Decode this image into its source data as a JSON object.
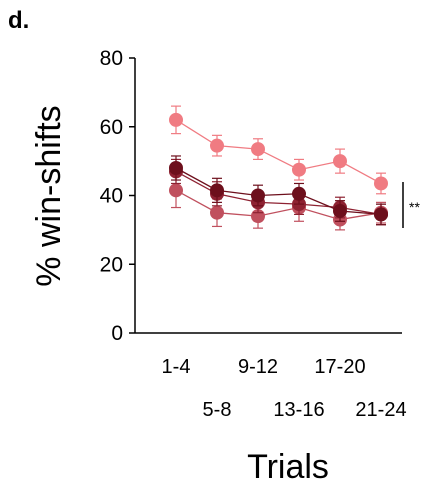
{
  "panel_label": "d.",
  "chart_data": {
    "type": "line",
    "title": "",
    "xlabel": "Trials",
    "ylabel": "% win-shifts",
    "ylim": [
      0,
      80
    ],
    "yticks": [
      0,
      20,
      40,
      60,
      80
    ],
    "categories": [
      "1-4",
      "5-8",
      "9-12",
      "13-16",
      "17-20",
      "21-24"
    ],
    "grid": false,
    "legend": "none",
    "series": [
      {
        "color": "#f07b82",
        "values": [
          62,
          54.5,
          53.5,
          47.5,
          50,
          43.5
        ],
        "errors": [
          4,
          3,
          3,
          3,
          3.5,
          3
        ]
      },
      {
        "color": "#c0505e",
        "values": [
          41.5,
          35,
          34,
          36.5,
          33,
          35
        ],
        "errors": [
          5,
          4,
          3.5,
          4,
          3,
          3
        ]
      },
      {
        "color": "#8e2232",
        "values": [
          47,
          40.5,
          38,
          37.5,
          36.5,
          34.5
        ],
        "errors": [
          3.5,
          3.5,
          3,
          3,
          3,
          3
        ]
      },
      {
        "color": "#6d0f1c",
        "values": [
          48,
          41.5,
          40,
          40.5,
          35.5,
          34.5
        ],
        "errors": [
          3.5,
          3.5,
          3,
          3,
          3,
          3
        ]
      }
    ],
    "annotation": "**"
  }
}
